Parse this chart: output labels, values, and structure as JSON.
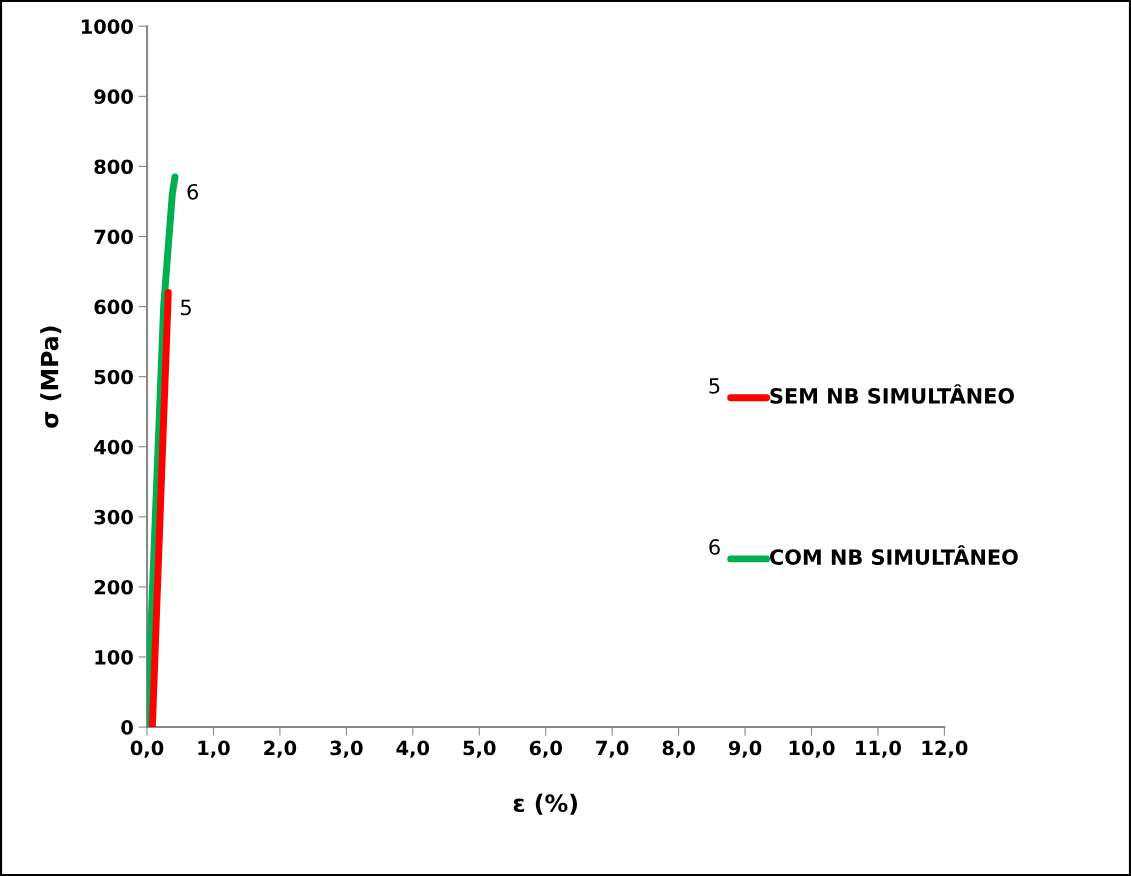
{
  "chart_data": {
    "type": "line",
    "xlabel": "ε (%)",
    "ylabel": "σ (MPa)",
    "xlim": [
      0,
      12
    ],
    "ylim": [
      0,
      1000
    ],
    "xticks": [
      {
        "value": 0,
        "label": "0,0"
      },
      {
        "value": 1,
        "label": "1,0"
      },
      {
        "value": 2,
        "label": "2,0"
      },
      {
        "value": 3,
        "label": "3,0"
      },
      {
        "value": 4,
        "label": "4,0"
      },
      {
        "value": 5,
        "label": "5,0"
      },
      {
        "value": 6,
        "label": "6,0"
      },
      {
        "value": 7,
        "label": "7,0"
      },
      {
        "value": 8,
        "label": "8,0"
      },
      {
        "value": 9,
        "label": "9,0"
      },
      {
        "value": 10,
        "label": "10,0"
      },
      {
        "value": 11,
        "label": "11,0"
      },
      {
        "value": 12,
        "label": "12,0"
      }
    ],
    "yticks": [
      0,
      100,
      200,
      300,
      400,
      500,
      600,
      700,
      800,
      900,
      1000
    ],
    "series": [
      {
        "name": "SEM NB SIMULTÂNEO",
        "color": "#ff0000",
        "x": [
          0.08,
          0.32
        ],
        "values": [
          0,
          620
        ]
      },
      {
        "name": "COM NB SIMULTÂNEO",
        "color": "#00b050",
        "x": [
          0.0,
          0.25,
          0.38,
          0.42
        ],
        "values": [
          0,
          600,
          760,
          785
        ]
      }
    ],
    "annotations": [
      {
        "text": "5",
        "x": 0.32,
        "y": 620
      },
      {
        "text": "6",
        "x": 0.42,
        "y": 785
      }
    ],
    "grid": false,
    "legend": "right",
    "line_style": "solid",
    "marker": "none"
  }
}
